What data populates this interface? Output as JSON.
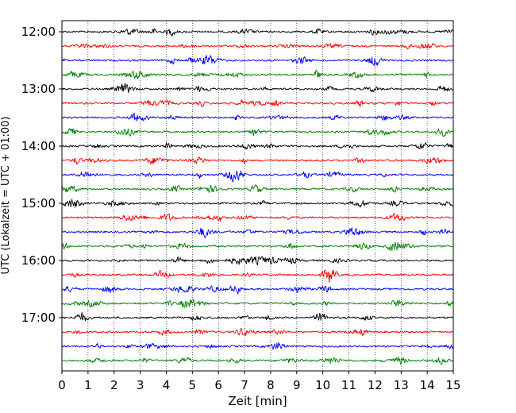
{
  "chart_data": {
    "type": "line",
    "title": "",
    "xlabel": "Zeit  [min]",
    "ylabel": "UTC (Lokalzeit = UTC + 01:00)",
    "xlim": [
      0,
      15
    ],
    "x_ticks": [
      0,
      1,
      2,
      3,
      4,
      5,
      6,
      7,
      8,
      9,
      10,
      11,
      12,
      13,
      14,
      15
    ],
    "y_tick_labels": [
      "12:00",
      "13:00",
      "14:00",
      "15:00",
      "16:00",
      "17:00"
    ],
    "grid": "vertical dotted lines at each minute",
    "legend": "none",
    "trace_colors": [
      "#000000",
      "#ff0000",
      "#0000ff",
      "#008000"
    ],
    "traces": [
      {
        "start": "12:00",
        "color": "#000000"
      },
      {
        "start": "12:15",
        "color": "#ff0000"
      },
      {
        "start": "12:30",
        "color": "#0000ff"
      },
      {
        "start": "12:45",
        "color": "#008000"
      },
      {
        "start": "13:00",
        "color": "#000000"
      },
      {
        "start": "13:15",
        "color": "#ff0000"
      },
      {
        "start": "13:30",
        "color": "#0000ff"
      },
      {
        "start": "13:45",
        "color": "#008000"
      },
      {
        "start": "14:00",
        "color": "#000000"
      },
      {
        "start": "14:15",
        "color": "#ff0000"
      },
      {
        "start": "14:30",
        "color": "#0000ff"
      },
      {
        "start": "14:45",
        "color": "#008000"
      },
      {
        "start": "15:00",
        "color": "#000000"
      },
      {
        "start": "15:15",
        "color": "#ff0000"
      },
      {
        "start": "15:30",
        "color": "#0000ff"
      },
      {
        "start": "15:45",
        "color": "#008000"
      },
      {
        "start": "16:00",
        "color": "#000000"
      },
      {
        "start": "16:15",
        "color": "#ff0000"
      },
      {
        "start": "16:30",
        "color": "#0000ff"
      },
      {
        "start": "16:45",
        "color": "#008000"
      },
      {
        "start": "17:00",
        "color": "#000000"
      },
      {
        "start": "17:15",
        "color": "#ff0000"
      },
      {
        "start": "17:30",
        "color": "#0000ff"
      },
      {
        "start": "17:45",
        "color": "#008000"
      }
    ]
  }
}
